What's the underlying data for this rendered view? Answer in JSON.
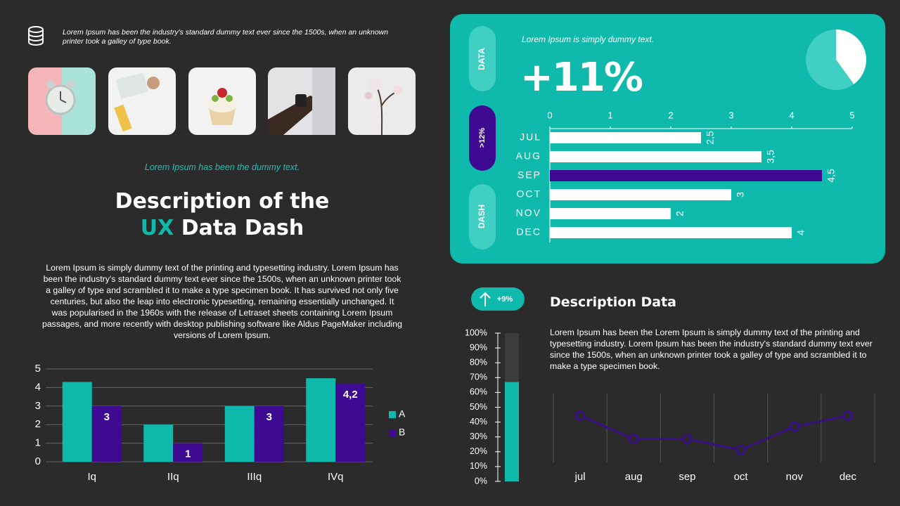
{
  "header": {
    "text": "Lorem Ipsum has been the industry's standard dummy text ever since the 1500s, when an unknown printer took a galley of type book."
  },
  "intro": {
    "tagline": "Lorem Ipsum has been the dummy text.",
    "title_line1": "Description of the",
    "title_highlight": "UX",
    "title_rest": "Data Dash",
    "body": "Lorem Ipsum is simply dummy text of the printing and typesetting industry. Lorem Ipsum has been the industry's standard dummy text ever since the 1500s, when an unknown printer took a galley of type and scrambled it to make a type specimen book. It has survived not only five centuries, but also the leap into electronic typesetting, remaining essentially unchanged. It was popularised in the 1960s with the release of Letraset sheets containing Lorem Ipsum passages, and more recently with desktop publishing software like Aldus PageMaker including versions of Lorem Ipsum."
  },
  "kpi": {
    "tabs": [
      "DATA",
      ">12%",
      "DASH"
    ],
    "caption": "Lorem Ipsum is simply dummy text.",
    "value": "+11%"
  },
  "badge": {
    "text": "+9%"
  },
  "description": {
    "title": "Description Data",
    "body": "Lorem Ipsum has been the Lorem Ipsum is simply dummy text of the printing and typesetting industry. Lorem Ipsum has been the industry's standard dummy text ever since the 1500s, when an unknown printer took a galley of type and scrambled it to make a type specimen book."
  },
  "chart_data": [
    {
      "type": "bar",
      "categories": [
        "Iq",
        "IIq",
        "IIIq",
        "IVq"
      ],
      "series": [
        {
          "name": "A",
          "color": "#0fb9ab",
          "values": [
            4.3,
            2,
            3,
            4.5
          ]
        },
        {
          "name": "B",
          "color": "#3d0a91",
          "values": [
            3,
            1,
            3,
            4.2
          ],
          "value_labels": [
            "3",
            "1",
            "3",
            "4,2"
          ]
        }
      ],
      "ylim": [
        0,
        5
      ],
      "yticks": [
        0,
        1,
        2,
        3,
        4,
        5
      ],
      "grid": true,
      "legend": "right"
    },
    {
      "type": "pie",
      "values": [
        40,
        60
      ],
      "colors": [
        "#ffffff",
        "#3fd0c3"
      ]
    },
    {
      "type": "hbar",
      "categories": [
        "JUL",
        "AUG",
        "SEP",
        "OCT",
        "NOV",
        "DEC"
      ],
      "values": [
        2.5,
        3.5,
        4.5,
        3,
        2,
        4
      ],
      "value_labels": [
        "2,5",
        "3,5",
        "4,5",
        "3",
        "2",
        "4"
      ],
      "colors": [
        "#ffffff",
        "#ffffff",
        "#3d0a91",
        "#ffffff",
        "#ffffff",
        "#ffffff"
      ],
      "xlim": [
        0,
        5
      ],
      "xticks": [
        0,
        1,
        2,
        3,
        4,
        5
      ]
    },
    {
      "type": "progress",
      "values": [
        67
      ],
      "color": "#0fb9ab",
      "track_color": "#3c3c3c",
      "ylim": [
        0,
        100
      ],
      "yticks": [
        {
          "value": 0,
          "label": "0%"
        },
        {
          "value": 10,
          "label": "10%"
        },
        {
          "value": 20,
          "label": "20%"
        },
        {
          "value": 30,
          "label": "30%"
        },
        {
          "value": 40,
          "label": "40%"
        },
        {
          "value": 50,
          "label": "50%"
        },
        {
          "value": 60,
          "label": "60%"
        },
        {
          "value": 70,
          "label": "70%"
        },
        {
          "value": 80,
          "label": "80%"
        },
        {
          "value": 90,
          "label": "90%"
        },
        {
          "value": 100,
          "label": "100%"
        }
      ]
    },
    {
      "type": "line",
      "categories": [
        "jul",
        "aug",
        "sep",
        "oct",
        "nov",
        "dec"
      ],
      "values": [
        3.4,
        1.7,
        1.7,
        0.9,
        2.6,
        3.4
      ],
      "color": "#3d0a91",
      "ylim": [
        0,
        5
      ],
      "grid": true
    }
  ]
}
